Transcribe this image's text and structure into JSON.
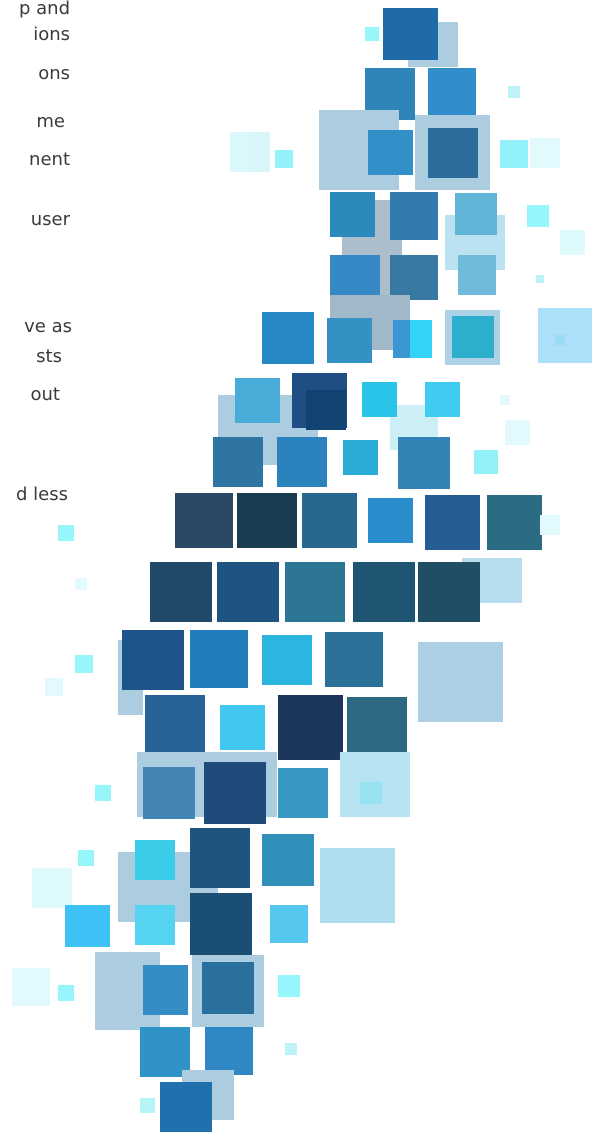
{
  "text_lines": [
    "p and",
    "ions",
    "ons",
    "me",
    "nent",
    "user",
    "ve as",
    "sts",
    "out",
    "d less"
  ]
}
